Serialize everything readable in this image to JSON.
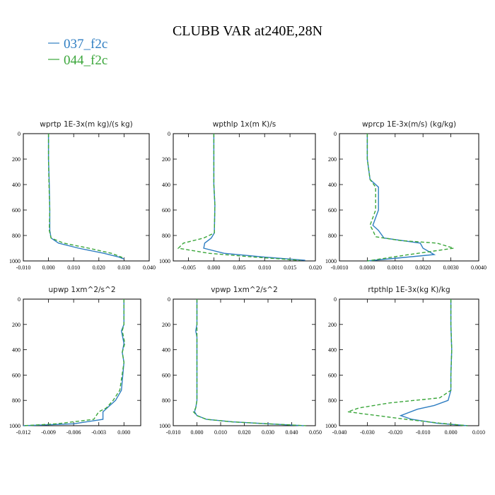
{
  "figure": {
    "title": "CLUBB VAR at240E,28N"
  },
  "legend": [
    {
      "label": "037_f2c",
      "color": "#2f7ec2",
      "dash": "solid"
    },
    {
      "label": "044_f2c",
      "color": "#3aa63a",
      "dash": "dashed"
    }
  ],
  "chart_data": [
    {
      "type": "line",
      "title": "wprtp   1E-3x(m kg)/(s kg)",
      "xlim": [
        -0.01,
        0.04
      ],
      "ylim": [
        0,
        1000
      ],
      "y_reversed": true,
      "xticks": [
        "-0.010",
        "0.000",
        "0.010",
        "0.020",
        "0.030",
        "0.040"
      ],
      "xtick_values": [
        -0.01,
        0.0,
        0.01,
        0.02,
        0.03,
        0.04
      ],
      "yticks": [
        "0",
        "200",
        "400",
        "600",
        "800",
        "1000"
      ],
      "ytick_values": [
        0,
        200,
        400,
        600,
        800,
        1000
      ],
      "series": [
        {
          "name": "037_f2c",
          "x": [
            0.0,
            0.0,
            0.0003,
            0.0005,
            0.0005,
            0.001,
            0.004,
            0.012,
            0.022,
            0.028,
            0.03
          ],
          "y": [
            0,
            200,
            400,
            600,
            760,
            820,
            860,
            900,
            940,
            970,
            985
          ]
        },
        {
          "name": "044_f2c",
          "x": [
            0.0,
            0.0,
            0.0002,
            0.0005,
            0.0003,
            0.001,
            0.006,
            0.016,
            0.025,
            0.029,
            0.03
          ],
          "y": [
            0,
            200,
            400,
            600,
            760,
            820,
            860,
            900,
            940,
            970,
            985
          ]
        }
      ]
    },
    {
      "type": "line",
      "title": "wpthlp   1x(m K)/s",
      "xlim": [
        -0.008,
        0.02
      ],
      "ylim": [
        0,
        1000
      ],
      "y_reversed": true,
      "xticks": [
        "-0.005",
        "0.000",
        "0.005",
        "0.010",
        "0.015",
        "0.020"
      ],
      "xtick_values": [
        -0.005,
        0.0,
        0.005,
        0.01,
        0.015,
        0.02
      ],
      "yticks": [
        "0",
        "200",
        "400",
        "600",
        "800",
        "1000"
      ],
      "ytick_values": [
        0,
        200,
        400,
        600,
        800,
        1000
      ],
      "series": [
        {
          "name": "037_f2c",
          "x": [
            0.0,
            0.0,
            0.0,
            0.0002,
            0.0001,
            -0.0005,
            -0.0018,
            -0.002,
            0.002,
            0.01,
            0.018
          ],
          "y": [
            0,
            200,
            400,
            560,
            780,
            820,
            860,
            900,
            940,
            970,
            995
          ]
        },
        {
          "name": "044_f2c",
          "x": [
            0.0,
            0.0,
            0.0,
            0.0002,
            0.0001,
            -0.002,
            -0.006,
            -0.007,
            -0.001,
            0.008,
            0.017
          ],
          "y": [
            0,
            200,
            400,
            560,
            780,
            820,
            860,
            900,
            940,
            970,
            995
          ]
        }
      ]
    },
    {
      "type": "line",
      "title": "wprcp   1E-3x(m/s) (kg/kg)",
      "xlim": [
        -0.001,
        0.004
      ],
      "ylim": [
        0,
        1000
      ],
      "y_reversed": true,
      "xticks": [
        "-0.0010",
        "0.0000",
        "0.0010",
        "0.0020",
        "0.0030",
        "0.0040"
      ],
      "xtick_values": [
        -0.001,
        0.0,
        0.001,
        0.002,
        0.003,
        0.004
      ],
      "yticks": [
        "0",
        "200",
        "400",
        "600",
        "800",
        "1000"
      ],
      "ytick_values": [
        0,
        200,
        400,
        600,
        800,
        1000
      ],
      "series": [
        {
          "name": "037_f2c",
          "x": [
            0.0,
            0.0,
            0.0001,
            0.0004,
            0.0004,
            0.0002,
            0.0004,
            0.0006,
            0.0019,
            0.002,
            0.0024,
            0.0012,
            0.0
          ],
          "y": [
            0,
            200,
            360,
            420,
            600,
            720,
            760,
            820,
            860,
            900,
            950,
            975,
            1000
          ]
        },
        {
          "name": "044_f2c",
          "x": [
            0.0,
            0.0,
            0.0001,
            0.0003,
            0.0003,
            0.0001,
            0.0002,
            0.0003,
            0.0012,
            0.0025,
            0.0031,
            0.0015,
            0.0
          ],
          "y": [
            0,
            200,
            360,
            420,
            600,
            720,
            760,
            810,
            840,
            860,
            900,
            950,
            1000
          ]
        }
      ]
    },
    {
      "type": "line",
      "title": "upwp   1xm^2/s^2",
      "xlim": [
        -0.012,
        0.002
      ],
      "ylim": [
        0,
        1000
      ],
      "y_reversed": true,
      "xticks": [
        "-0.012",
        "-0.009",
        "-0.006",
        "-0.003",
        "0.000"
      ],
      "xtick_values": [
        -0.012,
        -0.009,
        -0.006,
        -0.003,
        0.0
      ],
      "yticks": [
        "0",
        "200",
        "400",
        "600",
        "800",
        "1000"
      ],
      "ytick_values": [
        0,
        200,
        400,
        600,
        800,
        1000
      ],
      "series": [
        {
          "name": "037_f2c",
          "x": [
            0.0,
            0.0,
            -0.0003,
            0.0,
            -0.0002,
            0.0,
            -0.0003,
            -0.001,
            -0.002,
            -0.0025,
            -0.0025,
            -0.006,
            -0.012
          ],
          "y": [
            0,
            200,
            250,
            350,
            420,
            500,
            720,
            800,
            860,
            890,
            950,
            985,
            1000
          ]
        },
        {
          "name": "044_f2c",
          "x": [
            0.0,
            0.0,
            -0.0002,
            0.0001,
            -0.0002,
            0.0,
            -0.0005,
            -0.0013,
            -0.0021,
            -0.003,
            -0.0036,
            -0.008,
            -0.012
          ],
          "y": [
            0,
            200,
            250,
            350,
            420,
            500,
            720,
            800,
            860,
            890,
            950,
            985,
            1000
          ]
        }
      ]
    },
    {
      "type": "line",
      "title": "vpwp   1xm^2/s^2",
      "xlim": [
        -0.01,
        0.05
      ],
      "ylim": [
        0,
        1000
      ],
      "y_reversed": true,
      "xticks": [
        "-0.010",
        "0.000",
        "0.010",
        "0.020",
        "0.030",
        "0.040",
        "0.050"
      ],
      "xtick_values": [
        -0.01,
        0.0,
        0.01,
        0.02,
        0.03,
        0.04,
        0.05
      ],
      "yticks": [
        "0",
        "200",
        "400",
        "600",
        "800",
        "1000"
      ],
      "ytick_values": [
        0,
        200,
        400,
        600,
        800,
        1000
      ],
      "series": [
        {
          "name": "037_f2c",
          "x": [
            0.0,
            0.0,
            -0.0005,
            0.0,
            0.0,
            -0.0005,
            -0.001,
            0.0,
            0.004,
            0.015,
            0.03,
            0.045
          ],
          "y": [
            0,
            200,
            250,
            300,
            800,
            860,
            890,
            920,
            950,
            970,
            985,
            1000
          ]
        },
        {
          "name": "044_f2c",
          "x": [
            0.0,
            0.0,
            0.0,
            0.0,
            0.0,
            -0.0005,
            -0.0015,
            0.0,
            0.004,
            0.015,
            0.03,
            0.046
          ],
          "y": [
            0,
            200,
            250,
            300,
            800,
            860,
            890,
            920,
            950,
            970,
            985,
            1000
          ]
        }
      ]
    },
    {
      "type": "line",
      "title": "rtpthlp   1E-3x(kg K)/kg",
      "xlim": [
        -0.04,
        0.01
      ],
      "ylim": [
        0,
        1000
      ],
      "y_reversed": true,
      "xticks": [
        "-0.040",
        "-0.030",
        "-0.020",
        "-0.010",
        "0.000",
        "0.010"
      ],
      "xtick_values": [
        -0.04,
        -0.03,
        -0.02,
        -0.01,
        0.0,
        0.01
      ],
      "yticks": [
        "0",
        "200",
        "400",
        "600",
        "800",
        "1000"
      ],
      "ytick_values": [
        0,
        200,
        400,
        600,
        800,
        1000
      ],
      "series": [
        {
          "name": "037_f2c",
          "x": [
            0.0,
            0.0,
            0.0003,
            0.0,
            0.0,
            -0.001,
            -0.006,
            -0.012,
            -0.018,
            -0.014,
            -0.005,
            0.006
          ],
          "y": [
            0,
            200,
            400,
            600,
            720,
            800,
            840,
            870,
            920,
            950,
            980,
            1000
          ]
        },
        {
          "name": "044_f2c",
          "x": [
            0.0,
            0.0,
            0.0003,
            0.0,
            0.0,
            -0.004,
            -0.022,
            -0.033,
            -0.037,
            -0.016,
            -0.004,
            0.006
          ],
          "y": [
            0,
            200,
            400,
            600,
            720,
            780,
            820,
            860,
            890,
            950,
            980,
            1000
          ]
        }
      ]
    }
  ]
}
